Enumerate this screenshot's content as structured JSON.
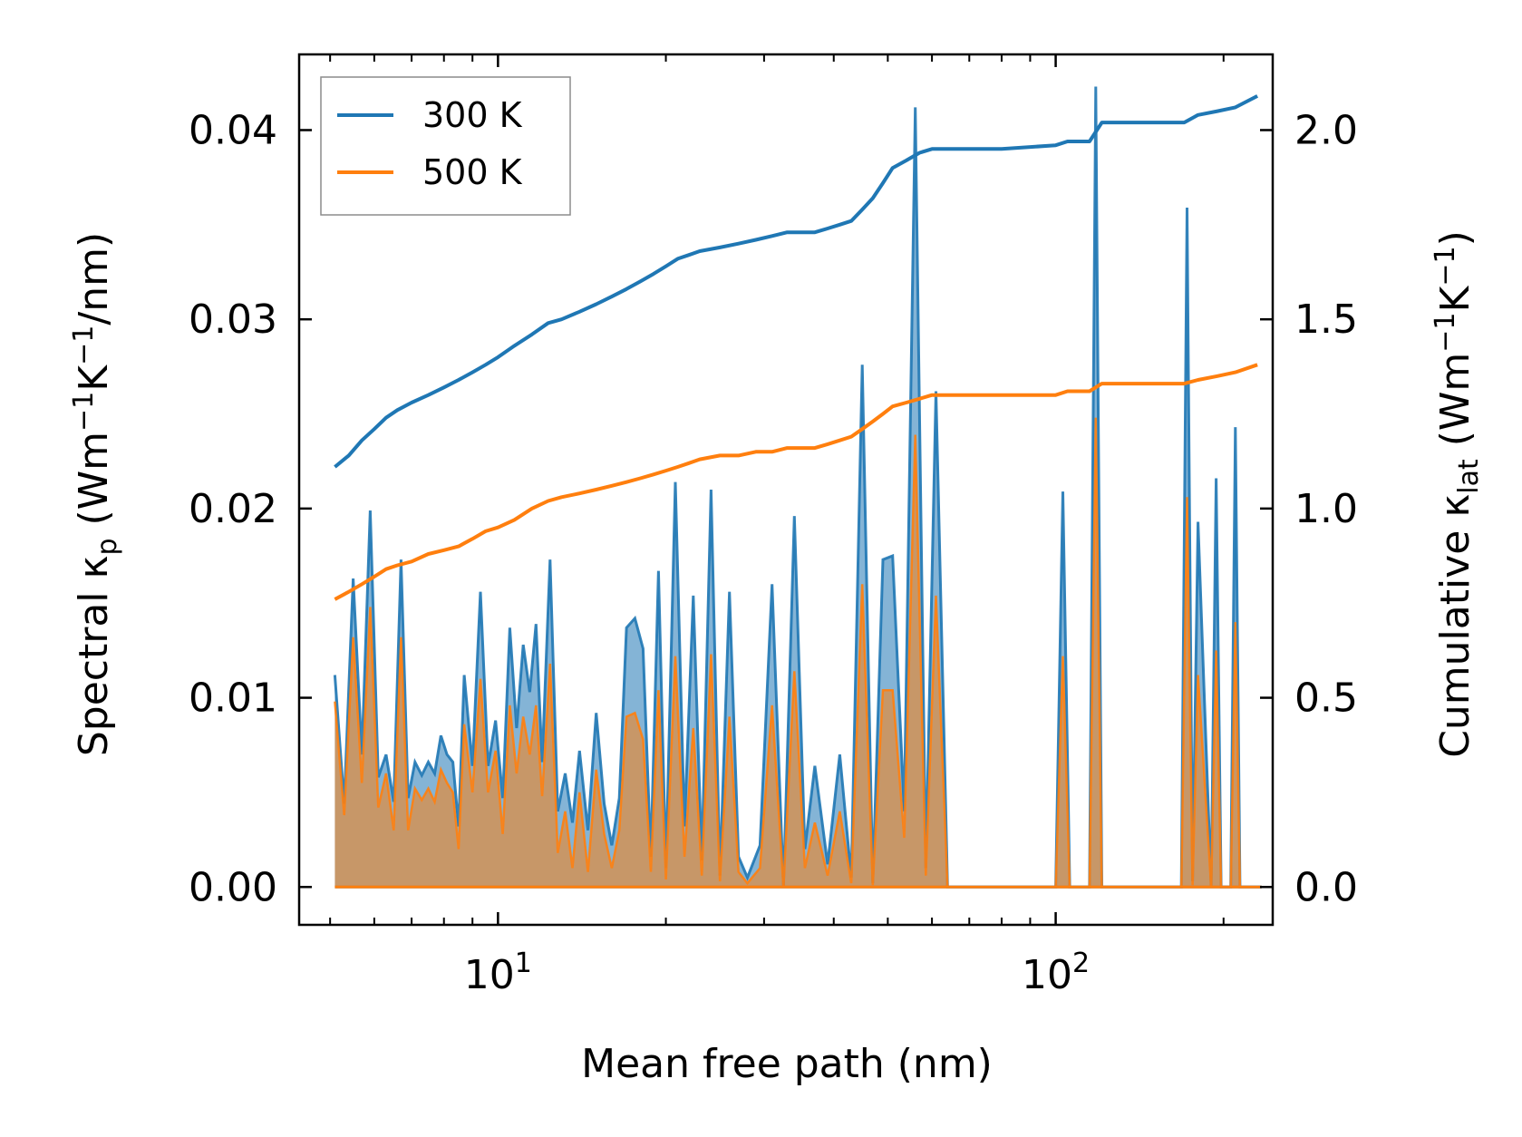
{
  "chart_data": {
    "type": "line",
    "xlabel": "Mean free path (nm)",
    "ylabel_left": {
      "text": "Spectral κ",
      "sub": "p",
      "unit": "(Wm",
      "sup1": "−1",
      "mid": "K",
      "sup2": "−1",
      "tail": "/nm)"
    },
    "ylabel_right": {
      "text": "Cumulative κ",
      "sub": "lat",
      "unit": "(Wm",
      "sup1": "−1",
      "mid": "K",
      "sup2": "−1",
      "tail": ")"
    },
    "x_scale": "log",
    "xlim": [
      4.4,
      245
    ],
    "ylim_left": [
      -0.002,
      0.044
    ],
    "ylim_right": [
      -0.1,
      2.2
    ],
    "x_ticks": [
      {
        "value": 10,
        "base": "10",
        "exp": "1"
      },
      {
        "value": 100,
        "base": "10",
        "exp": "2"
      }
    ],
    "y_left_ticks": [
      {
        "value": 0.0,
        "label": "0.00"
      },
      {
        "value": 0.01,
        "label": "0.01"
      },
      {
        "value": 0.02,
        "label": "0.02"
      },
      {
        "value": 0.03,
        "label": "0.03"
      },
      {
        "value": 0.04,
        "label": "0.04"
      }
    ],
    "y_right_ticks": [
      {
        "value": 0.0,
        "label": "0.0"
      },
      {
        "value": 0.5,
        "label": "0.5"
      },
      {
        "value": 1.0,
        "label": "1.0"
      },
      {
        "value": 1.5,
        "label": "1.5"
      },
      {
        "value": 2.0,
        "label": "2.0"
      }
    ],
    "legend_position": "top-left",
    "colors": {
      "s300": "#1f77b4",
      "s500": "#ff7f0e"
    },
    "spectral_x": [
      5.1,
      5.3,
      5.5,
      5.7,
      5.9,
      6.1,
      6.3,
      6.5,
      6.7,
      6.9,
      7.1,
      7.3,
      7.5,
      7.7,
      7.9,
      8.1,
      8.3,
      8.5,
      8.7,
      9.0,
      9.3,
      9.6,
      9.9,
      10.2,
      10.5,
      10.8,
      11.1,
      11.4,
      11.7,
      12.0,
      12.4,
      12.8,
      13.2,
      13.6,
      14.0,
      14.5,
      15.0,
      15.5,
      16.0,
      16.5,
      17.0,
      17.6,
      18.2,
      18.8,
      19.4,
      20.0,
      20.8,
      21.6,
      22.4,
      23.2,
      24.1,
      25.0,
      26.0,
      27.0,
      28.0,
      29.5,
      31.0,
      32.5,
      34.0,
      35.5,
      37.0,
      39.0,
      41.0,
      43.0,
      45.0,
      47.0,
      49.0,
      51.0,
      53.5,
      56.0,
      58.5,
      61.0,
      64.0,
      100.0,
      103.0,
      106.0,
      115.0,
      118.0,
      121.0,
      168.0,
      172.0,
      176.0,
      180.0,
      190.0,
      194.0,
      198.0,
      206.0,
      210.0,
      214.0,
      228.0,
      234.0
    ],
    "series": [
      {
        "name": "300 K",
        "spectral": [
          0.0112,
          0.0044,
          0.0163,
          0.007,
          0.0199,
          0.0058,
          0.007,
          0.0045,
          0.0173,
          0.0047,
          0.0066,
          0.0059,
          0.0066,
          0.006,
          0.008,
          0.007,
          0.0066,
          0.0032,
          0.0112,
          0.0064,
          0.0156,
          0.0064,
          0.0088,
          0.0047,
          0.0137,
          0.0084,
          0.0128,
          0.0103,
          0.0139,
          0.0066,
          0.0173,
          0.004,
          0.006,
          0.0034,
          0.0072,
          0.003,
          0.0092,
          0.0044,
          0.0022,
          0.0047,
          0.0137,
          0.0142,
          0.0126,
          0.0016,
          0.0167,
          0.001,
          0.0214,
          0.0032,
          0.0154,
          0.0014,
          0.021,
          0.0006,
          0.0156,
          0.0016,
          0.0005,
          0.0022,
          0.016,
          0.0,
          0.0196,
          0.002,
          0.0064,
          0.0012,
          0.007,
          0.0005,
          0.0276,
          0.0002,
          0.0173,
          0.0175,
          0.004,
          0.0412,
          0.001,
          0.0262,
          0.0,
          0.0,
          0.0209,
          0.0,
          0.0,
          0.0423,
          0.0,
          0.0,
          0.0359,
          0.0003,
          0.0193,
          0.0,
          0.0216,
          0.0,
          0.0,
          0.0243,
          0.0,
          0.0,
          0.0
        ],
        "cumulative_x": [
          5.1,
          5.4,
          5.7,
          6.0,
          6.3,
          6.6,
          7.0,
          7.5,
          8.0,
          8.5,
          9.0,
          9.5,
          10.0,
          10.7,
          11.5,
          12.3,
          13.0,
          14.0,
          15.0,
          16.0,
          17.0,
          18.0,
          19.0,
          20.0,
          21.0,
          22.0,
          23.0,
          25.0,
          27.0,
          29.0,
          31.0,
          33.0,
          35.0,
          37.0,
          39.0,
          41.0,
          43.0,
          45.0,
          47.0,
          49.0,
          51.0,
          54.0,
          57.0,
          60.0,
          65.0,
          80.0,
          100.0,
          105.0,
          115.0,
          121.0,
          140.0,
          170.0,
          180.0,
          195.0,
          210.0,
          230.0
        ],
        "cumulative": [
          1.11,
          1.14,
          1.18,
          1.21,
          1.24,
          1.26,
          1.28,
          1.3,
          1.32,
          1.34,
          1.36,
          1.38,
          1.4,
          1.43,
          1.46,
          1.49,
          1.5,
          1.52,
          1.54,
          1.56,
          1.58,
          1.6,
          1.62,
          1.64,
          1.66,
          1.67,
          1.68,
          1.69,
          1.7,
          1.71,
          1.72,
          1.73,
          1.73,
          1.73,
          1.74,
          1.75,
          1.76,
          1.79,
          1.82,
          1.86,
          1.9,
          1.92,
          1.94,
          1.95,
          1.95,
          1.95,
          1.96,
          1.97,
          1.97,
          2.02,
          2.02,
          2.02,
          2.04,
          2.05,
          2.06,
          2.09
        ]
      },
      {
        "name": "500 K",
        "spectral": [
          0.0098,
          0.0038,
          0.0132,
          0.0055,
          0.0148,
          0.0042,
          0.006,
          0.003,
          0.0132,
          0.003,
          0.0052,
          0.0046,
          0.0052,
          0.0045,
          0.0062,
          0.0055,
          0.005,
          0.002,
          0.0086,
          0.005,
          0.011,
          0.005,
          0.0072,
          0.0028,
          0.0096,
          0.006,
          0.009,
          0.007,
          0.0096,
          0.0048,
          0.0118,
          0.0018,
          0.004,
          0.001,
          0.005,
          0.0008,
          0.0062,
          0.0028,
          0.001,
          0.003,
          0.009,
          0.0092,
          0.0078,
          0.0008,
          0.0104,
          0.0004,
          0.0122,
          0.0016,
          0.0084,
          0.0006,
          0.0123,
          0.0003,
          0.009,
          0.0008,
          0.0002,
          0.001,
          0.0096,
          0.0,
          0.0114,
          0.001,
          0.0034,
          0.0006,
          0.004,
          0.0002,
          0.016,
          0.0001,
          0.0104,
          0.0104,
          0.0026,
          0.0239,
          0.0006,
          0.0154,
          0.0,
          0.0,
          0.0122,
          0.0,
          0.0,
          0.0248,
          0.0,
          0.0,
          0.0206,
          0.0001,
          0.0112,
          0.0,
          0.0125,
          0.0,
          0.0,
          0.014,
          0.0,
          0.0,
          0.0
        ],
        "cumulative_x": [
          5.1,
          5.4,
          5.7,
          6.0,
          6.3,
          6.6,
          7.0,
          7.5,
          8.0,
          8.5,
          9.0,
          9.5,
          10.0,
          10.7,
          11.5,
          12.3,
          13.0,
          14.0,
          15.0,
          16.0,
          17.0,
          18.0,
          19.0,
          20.0,
          21.0,
          22.0,
          23.0,
          25.0,
          27.0,
          29.0,
          31.0,
          33.0,
          35.0,
          37.0,
          39.0,
          41.0,
          43.0,
          45.0,
          47.0,
          49.0,
          51.0,
          54.0,
          57.0,
          60.0,
          65.0,
          80.0,
          100.0,
          105.0,
          115.0,
          121.0,
          140.0,
          170.0,
          180.0,
          195.0,
          210.0,
          230.0
        ],
        "cumulative": [
          0.76,
          0.78,
          0.8,
          0.82,
          0.84,
          0.85,
          0.86,
          0.88,
          0.89,
          0.9,
          0.92,
          0.94,
          0.95,
          0.97,
          1.0,
          1.02,
          1.03,
          1.04,
          1.05,
          1.06,
          1.07,
          1.08,
          1.09,
          1.1,
          1.11,
          1.12,
          1.13,
          1.14,
          1.14,
          1.15,
          1.15,
          1.16,
          1.16,
          1.16,
          1.17,
          1.18,
          1.19,
          1.21,
          1.23,
          1.25,
          1.27,
          1.28,
          1.29,
          1.3,
          1.3,
          1.3,
          1.3,
          1.31,
          1.31,
          1.33,
          1.33,
          1.33,
          1.34,
          1.35,
          1.36,
          1.38
        ]
      }
    ]
  }
}
